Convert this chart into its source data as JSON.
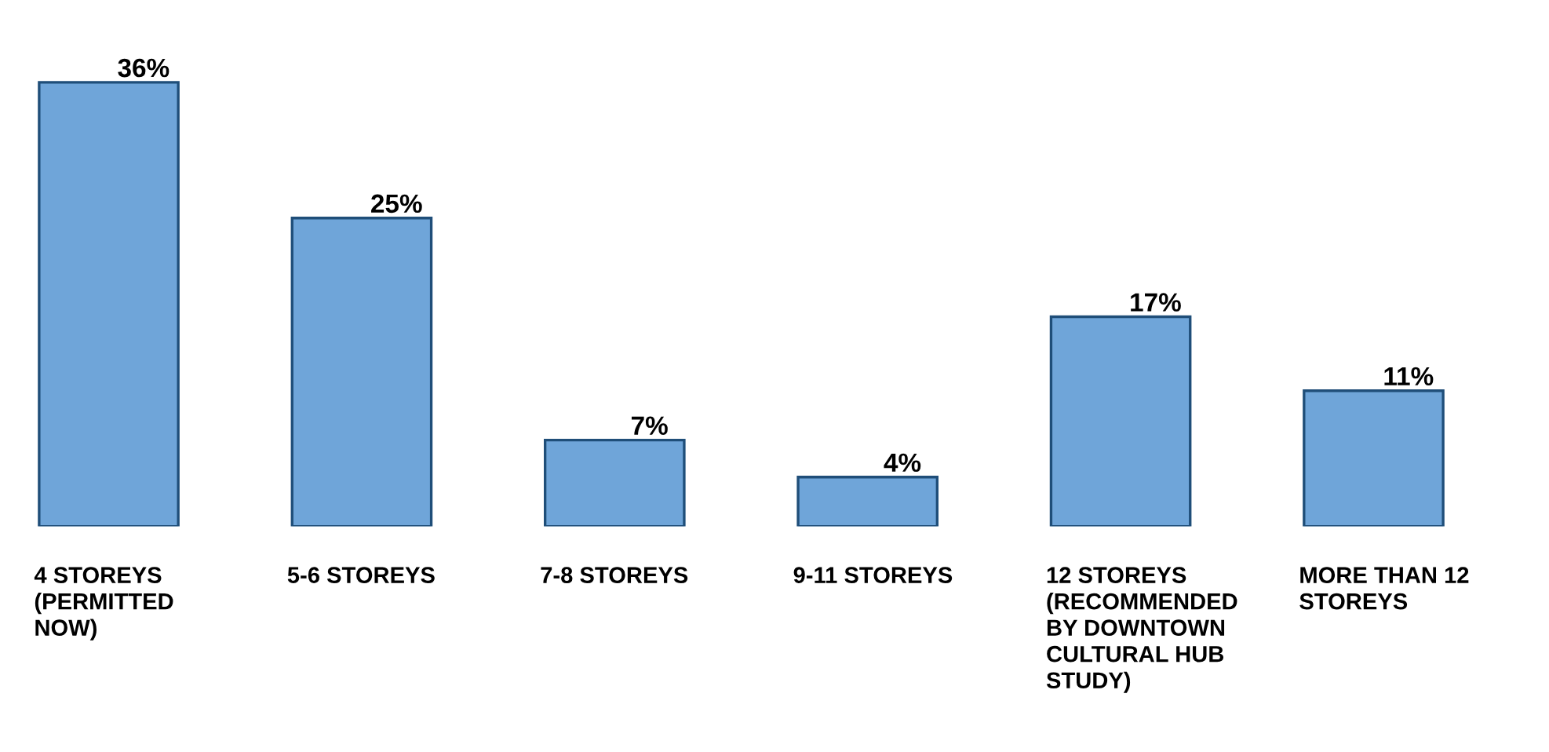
{
  "chart_data": {
    "type": "bar",
    "categories": [
      "4 STOREYS (PERMITTED NOW)",
      "5-6 STOREYS",
      "7-8 STOREYS",
      "9-11 STOREYS",
      "12 STOREYS (RECOMMENDED BY DOWNTOWN CULTURAL HUB STUDY)",
      "MORE THAN 12 STOREYS"
    ],
    "values": [
      36,
      25,
      7,
      4,
      17,
      11
    ],
    "value_labels": [
      "36%",
      "25%",
      "7%",
      "4%",
      "17%",
      "11%"
    ],
    "color": "#6fa5d9"
  }
}
